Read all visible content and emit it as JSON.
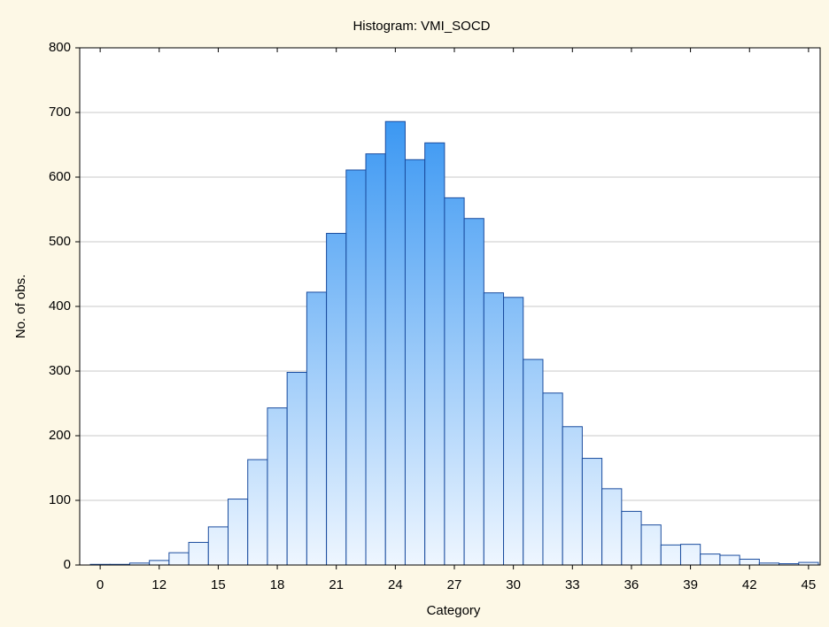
{
  "chart_data": {
    "type": "bar",
    "title": "Histogram: VMI_SOCD",
    "x_label": "Category",
    "y_label": "No. of obs.",
    "categories": [
      "0",
      null,
      null,
      "12",
      null,
      null,
      "15",
      null,
      null,
      "18",
      null,
      null,
      "21",
      null,
      null,
      "24",
      null,
      null,
      "27",
      null,
      null,
      "30",
      null,
      null,
      "33",
      null,
      null,
      "36",
      null,
      null,
      "39",
      null,
      null,
      "42",
      null,
      null,
      "45"
    ],
    "values": [
      1,
      1,
      3,
      7,
      19,
      35,
      59,
      102,
      163,
      243,
      298,
      422,
      513,
      611,
      636,
      686,
      627,
      653,
      568,
      536,
      421,
      414,
      318,
      266,
      214,
      165,
      118,
      83,
      62,
      31,
      32,
      17,
      15,
      9,
      3,
      2,
      4
    ],
    "color": "#1e88f0",
    "edge_color": "#1a4c9e",
    "ylim": [
      0,
      800
    ],
    "yticks": [
      0,
      100,
      200,
      300,
      400,
      500,
      600,
      700,
      800
    ],
    "grid": true
  }
}
